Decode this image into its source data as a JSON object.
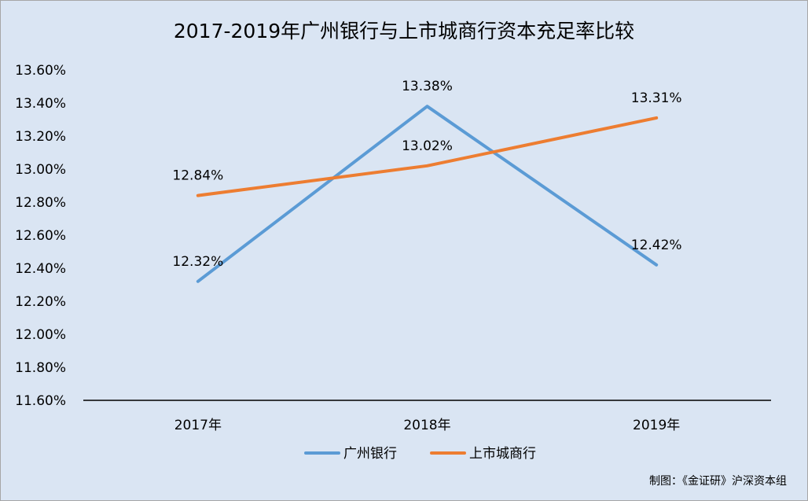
{
  "chart_data": {
    "type": "line",
    "title": "2017-2019年广州银行与上市城商行资本充足率比较",
    "categories": [
      "2017年",
      "2018年",
      "2019年"
    ],
    "ylim": [
      11.6,
      13.6
    ],
    "ytick_step": 0.2,
    "yticks": [
      "11.60%",
      "11.80%",
      "12.00%",
      "12.20%",
      "12.40%",
      "12.60%",
      "12.80%",
      "13.00%",
      "13.20%",
      "13.40%",
      "13.60%"
    ],
    "grid": false,
    "legend_position": "bottom",
    "series": [
      {
        "name": "广州银行",
        "color": "#5b9bd5",
        "values": [
          12.32,
          13.38,
          12.42
        ],
        "labels": [
          "12.32%",
          "13.38%",
          "12.42%"
        ]
      },
      {
        "name": "上市城商行",
        "color": "#ed7d31",
        "values": [
          12.84,
          13.02,
          13.31
        ],
        "labels": [
          "12.84%",
          "13.02%",
          "13.31%"
        ]
      }
    ]
  },
  "credit": "制图：《金证研》沪深资本组"
}
